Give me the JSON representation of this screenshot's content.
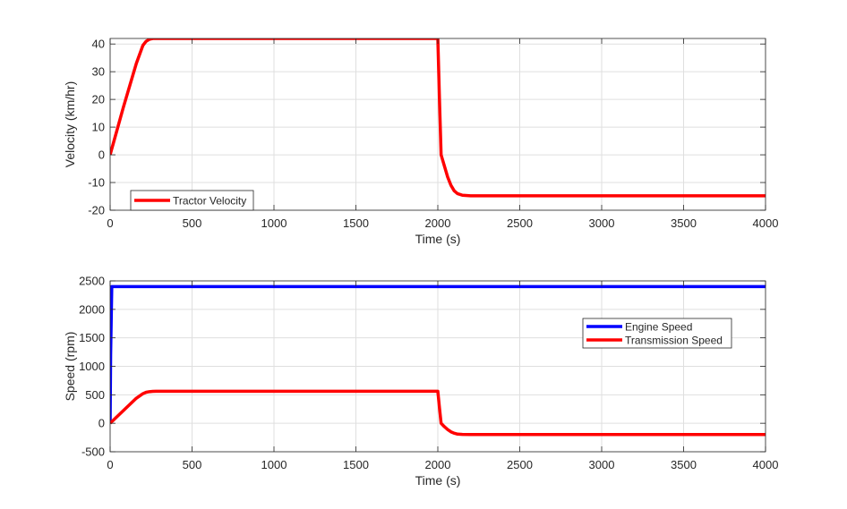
{
  "colors": {
    "background": "#ffffff",
    "axes_face": "#ffffff",
    "grid": "#dfdfdf",
    "axis_line": "#262626",
    "series_red": "#ff0000",
    "series_blue": "#0000ff"
  },
  "chart_data": [
    {
      "type": "line",
      "title": "",
      "xlabel": "Time (s)",
      "ylabel": "Velocity (km/hr)",
      "xlim": [
        0,
        4000
      ],
      "ylim": [
        -20,
        42
      ],
      "xticks": [
        0,
        500,
        1000,
        1500,
        2000,
        2500,
        3000,
        3500,
        4000
      ],
      "yticks": [
        -20,
        -10,
        0,
        10,
        20,
        30,
        40
      ],
      "grid": true,
      "legend_position": "bottom-left",
      "series": [
        {
          "name": "Tractor Velocity",
          "color": "#ff0000",
          "x": [
            0,
            40,
            80,
            120,
            160,
            200,
            220,
            240,
            260,
            280,
            300,
            2000,
            2010,
            2020,
            2040,
            2060,
            2080,
            2100,
            2120,
            2150,
            2200,
            2300,
            4000
          ],
          "y": [
            0,
            8.5,
            17,
            25,
            33,
            39.5,
            41,
            41.7,
            42,
            42,
            42,
            42,
            20,
            0,
            -4,
            -8,
            -11,
            -13,
            -14,
            -14.6,
            -14.8,
            -14.8,
            -14.8
          ]
        }
      ]
    },
    {
      "type": "line",
      "title": "",
      "xlabel": "Time (s)",
      "ylabel": "Speed (rpm)",
      "xlim": [
        0,
        4000
      ],
      "ylim": [
        -500,
        2500
      ],
      "xticks": [
        0,
        500,
        1000,
        1500,
        2000,
        2500,
        3000,
        3500,
        4000
      ],
      "yticks": [
        -500,
        0,
        500,
        1000,
        1500,
        2000,
        2500
      ],
      "grid": true,
      "legend_position": "upper-right",
      "series": [
        {
          "name": "Engine Speed",
          "color": "#0000ff",
          "x": [
            0,
            3,
            10,
            20,
            4000
          ],
          "y": [
            0,
            1200,
            2400,
            2400,
            2400
          ]
        },
        {
          "name": "Transmission Speed",
          "color": "#ff0000",
          "x": [
            0,
            40,
            80,
            120,
            160,
            200,
            220,
            240,
            260,
            280,
            300,
            2000,
            2010,
            2020,
            2040,
            2060,
            2080,
            2100,
            2120,
            2150,
            2200,
            2300,
            4000
          ],
          "y": [
            0,
            110,
            220,
            330,
            440,
            520,
            545,
            555,
            560,
            562,
            562,
            562,
            270,
            0,
            -60,
            -110,
            -150,
            -175,
            -190,
            -195,
            -198,
            -198,
            -198
          ]
        }
      ]
    }
  ]
}
